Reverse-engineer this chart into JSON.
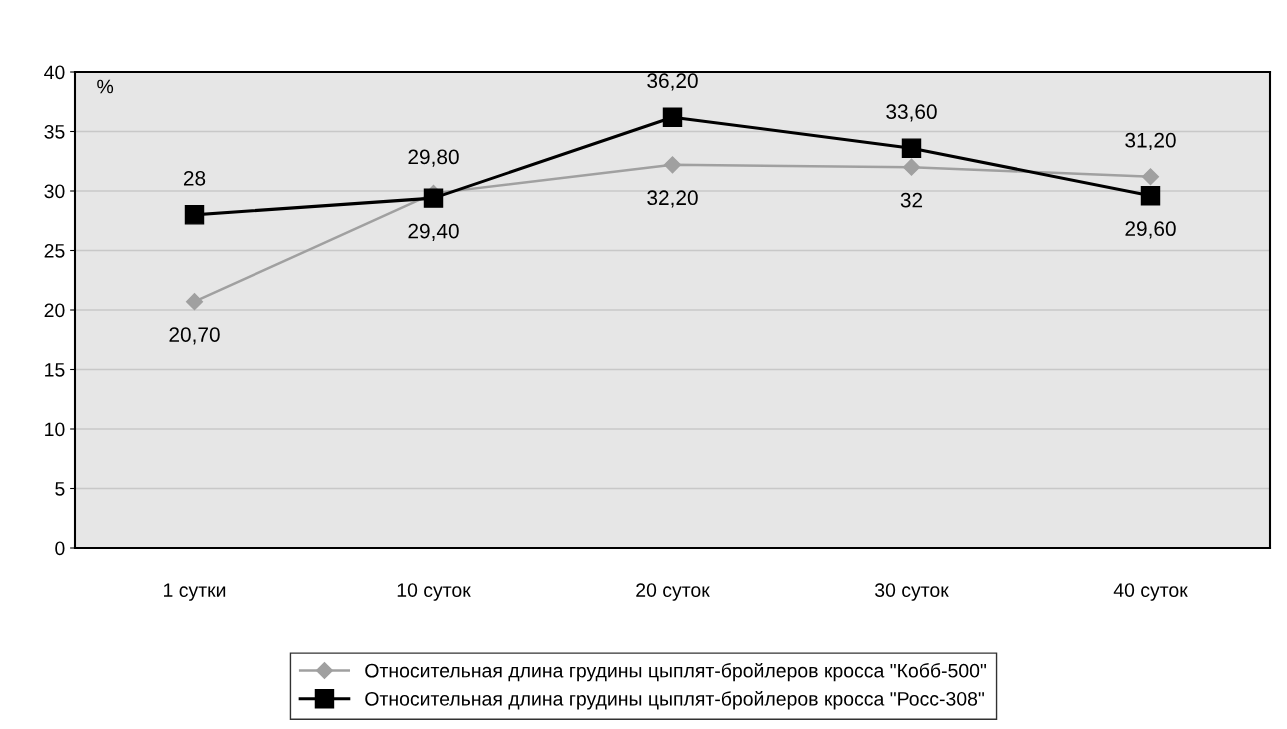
{
  "chart_data": {
    "type": "line",
    "categories": [
      "1 сутки",
      "10 суток",
      "20 суток",
      "30 суток",
      "40 суток"
    ],
    "series": [
      {
        "name": "Относительная длина грудины цыплят-бройлеров кросса \"Кобб-500\"",
        "color": "#a0a0a0",
        "marker": "diamond",
        "values": [
          20.7,
          29.8,
          32.2,
          32,
          31.2
        ],
        "value_labels": [
          "20,70",
          "29,80",
          "32,20",
          "32",
          "31,20"
        ]
      },
      {
        "name": "Относительная длина грудины цыплят-бройлеров кросса \"Росс-308\"",
        "color": "#000000",
        "marker": "square",
        "values": [
          28,
          29.4,
          36.2,
          33.6,
          29.6
        ],
        "value_labels": [
          "28",
          "29,40",
          "36,20",
          "33,60",
          "29,60"
        ]
      }
    ],
    "ylim": [
      0,
      40
    ],
    "yticks": [
      0,
      5,
      10,
      15,
      20,
      25,
      30,
      35,
      40
    ],
    "grid": "y",
    "legend": "bottom",
    "annotations": [
      "%"
    ]
  }
}
